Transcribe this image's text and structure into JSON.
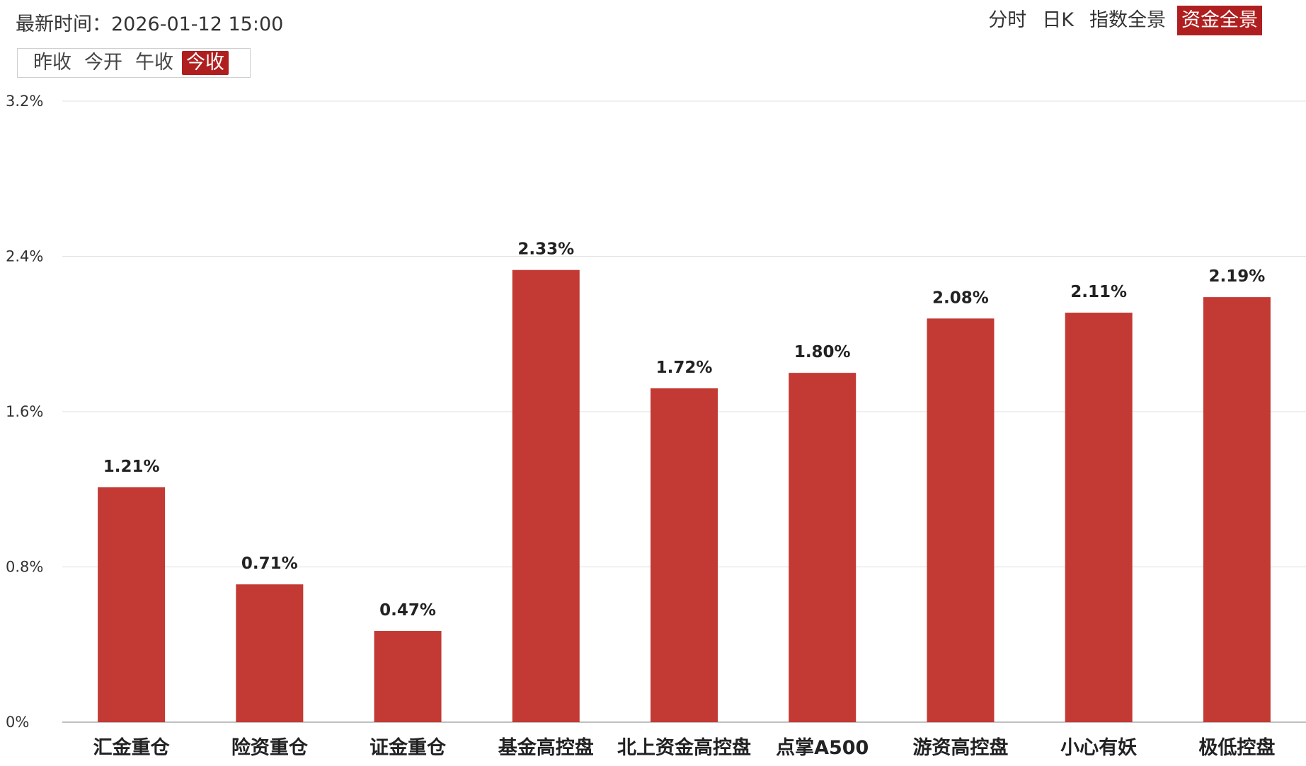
{
  "header": {
    "latest_time": "最新时间：2026-01-12 15:00",
    "tabs": [
      {
        "label": "分时",
        "active": false
      },
      {
        "label": "日K",
        "active": false
      },
      {
        "label": "指数全景",
        "active": false
      },
      {
        "label": "资金全景",
        "active": true
      }
    ]
  },
  "subtabs": [
    {
      "label": "昨收",
      "active": false
    },
    {
      "label": "今开",
      "active": false
    },
    {
      "label": "午收",
      "active": false
    },
    {
      "label": "今收",
      "active": true
    }
  ],
  "colors": {
    "accent": "#b01f1f",
    "bar": "#c23a33",
    "grid": "#e5e5e5"
  },
  "chart_data": {
    "type": "bar",
    "title": "",
    "xlabel": "",
    "ylabel": "",
    "categories": [
      "汇金重仓",
      "险资重仓",
      "证金重仓",
      "基金高控盘",
      "北上资金高控盘",
      "点掌A500",
      "游资高控盘",
      "小心有妖",
      "极低控盘"
    ],
    "values": [
      1.21,
      0.71,
      0.47,
      2.33,
      1.72,
      1.8,
      2.08,
      2.11,
      2.19
    ],
    "value_labels": [
      "1.21%",
      "0.71%",
      "0.47%",
      "2.33%",
      "1.72%",
      "1.80%",
      "2.08%",
      "2.11%",
      "2.19%"
    ],
    "ylim": [
      0,
      3.2
    ],
    "yticks": [
      0,
      0.8,
      1.6,
      2.4,
      3.2
    ],
    "ytick_labels": [
      "0%",
      "0.8%",
      "1.6%",
      "2.4%",
      "3.2%"
    ],
    "grid": true,
    "legend": false
  }
}
